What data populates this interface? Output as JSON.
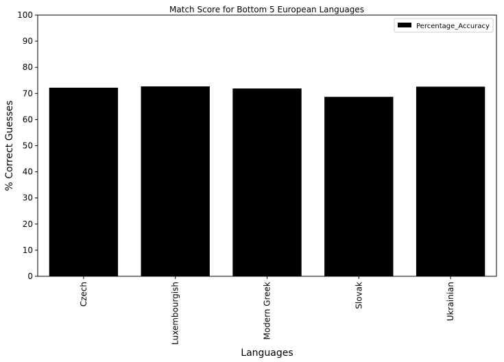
{
  "chart_data": {
    "type": "bar",
    "title": "Match Score for Bottom 5 European Languages",
    "xlabel": "Languages",
    "ylabel": "% Correct Guesses",
    "categories": [
      "Czech",
      "Luxembourgish",
      "Modern Greek",
      "Slovak",
      "Ukrainian"
    ],
    "series": [
      {
        "name": "Percentage_Accuracy",
        "values": [
          72.2,
          72.7,
          71.9,
          68.7,
          72.6
        ],
        "color": "#000000"
      }
    ],
    "ylim": [
      0,
      100
    ],
    "yticks": [
      "0",
      "10",
      "20",
      "30",
      "40",
      "50",
      "60",
      "70",
      "80",
      "90",
      "100"
    ],
    "grid": false,
    "legend_position": "top-right"
  }
}
